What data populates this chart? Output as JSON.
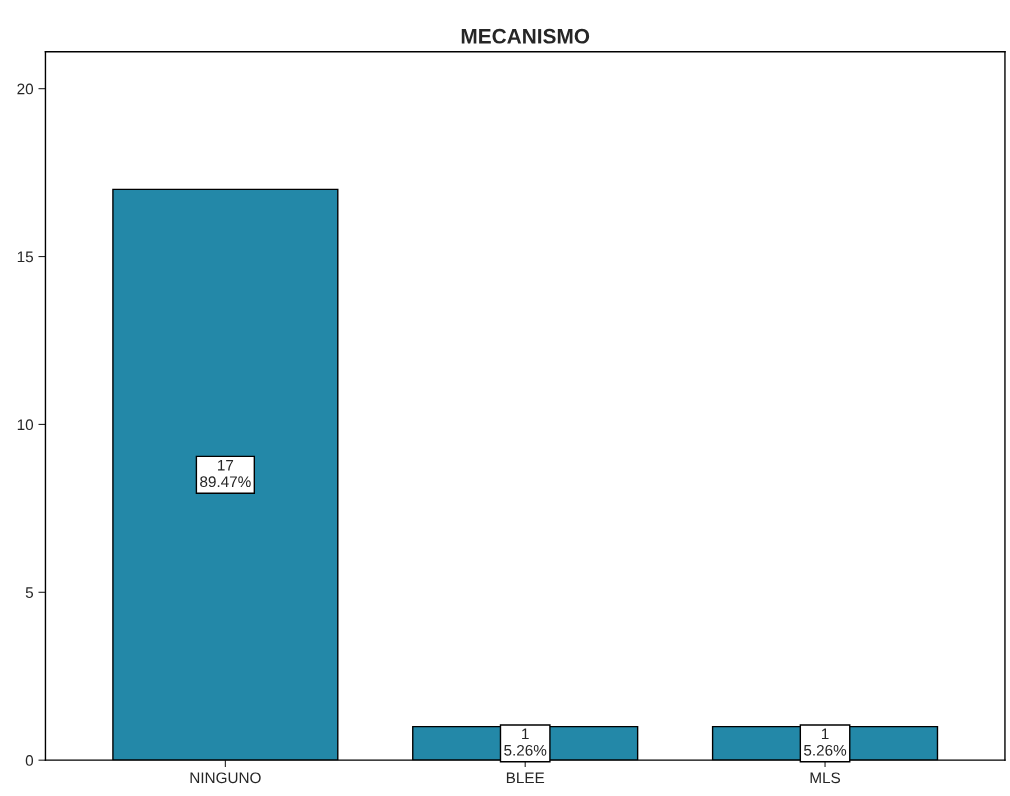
{
  "chart_data": {
    "type": "bar",
    "title": "MECANISMO",
    "categories": [
      "NINGUNO",
      "BLEE",
      "MLS"
    ],
    "values": [
      17,
      1,
      1
    ],
    "color": "#2388a8",
    "value_labels": [
      "17\n89.47%",
      "1\n5.26%",
      "1\n5.26%"
    ],
    "ylim": [
      0,
      21.1
    ],
    "yticks": [
      0,
      5,
      10,
      15,
      20
    ],
    "grid": false,
    "legend": false
  }
}
